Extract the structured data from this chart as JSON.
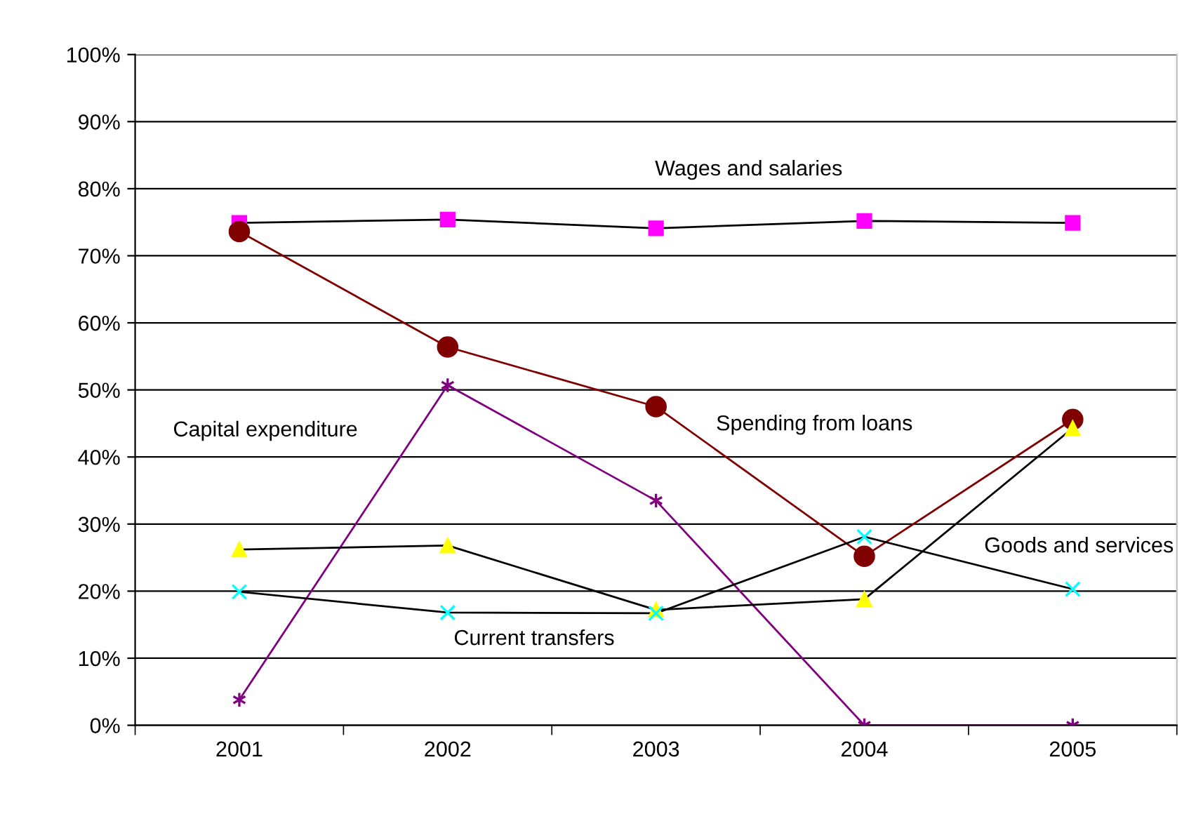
{
  "chart_data": {
    "type": "line",
    "categories": [
      "2001",
      "2002",
      "2003",
      "2004",
      "2005"
    ],
    "series": [
      {
        "name": "Wages and salaries",
        "color": "#000000",
        "colors": [
          "#ff00ff",
          "#ff00ff",
          "#ff00ff",
          "#ff00ff",
          "#ff00ff"
        ],
        "marker": "square",
        "values": [
          74.9,
          75.4,
          74.1,
          75.2,
          74.9
        ]
      },
      {
        "name": "Spending from loans",
        "color": "#800000",
        "marker": "circle",
        "values": [
          73.6,
          56.4,
          47.5,
          25.2,
          45.6
        ]
      },
      {
        "name": "Capital expenditure",
        "color": "#800080",
        "marker": "cross",
        "values": [
          3.8,
          50.7,
          33.5,
          0,
          0
        ]
      },
      {
        "color": "#000000",
        "colors": [
          "#ffff00",
          "#ffff00",
          "#ffff00",
          "#ffff00",
          "#ffff00"
        ],
        "marker": "triangle",
        "values": [
          26.2,
          26.8,
          17.2,
          18.8,
          44.3
        ]
      },
      {
        "color": "#000000",
        "colors": [
          "#00ffff",
          "#00ffff",
          "#00ffff",
          "#00ffff",
          "#00ffff"
        ],
        "marker": "cross",
        "values": [
          19.9,
          16.8,
          16.7,
          28.1,
          20.3
        ]
      }
    ],
    "ylim": [
      0,
      100
    ],
    "yticks": [
      {
        "value": 0,
        "label": "0%"
      },
      {
        "value": 10,
        "label": "10%"
      },
      {
        "value": 20,
        "label": "20%"
      },
      {
        "value": 30,
        "label": "30%"
      },
      {
        "value": 40,
        "label": "40%"
      },
      {
        "value": 50,
        "label": "50%"
      },
      {
        "value": 60,
        "label": "60%"
      },
      {
        "value": 70,
        "label": "70%"
      },
      {
        "value": 80,
        "label": "80%"
      },
      {
        "value": 90,
        "label": "90%"
      },
      {
        "value": 100,
        "label": "100%"
      }
    ],
    "annotations": [
      "Current transfers",
      "Goods and services"
    ],
    "grid": "y",
    "legend": false,
    "line_style": "solid"
  }
}
